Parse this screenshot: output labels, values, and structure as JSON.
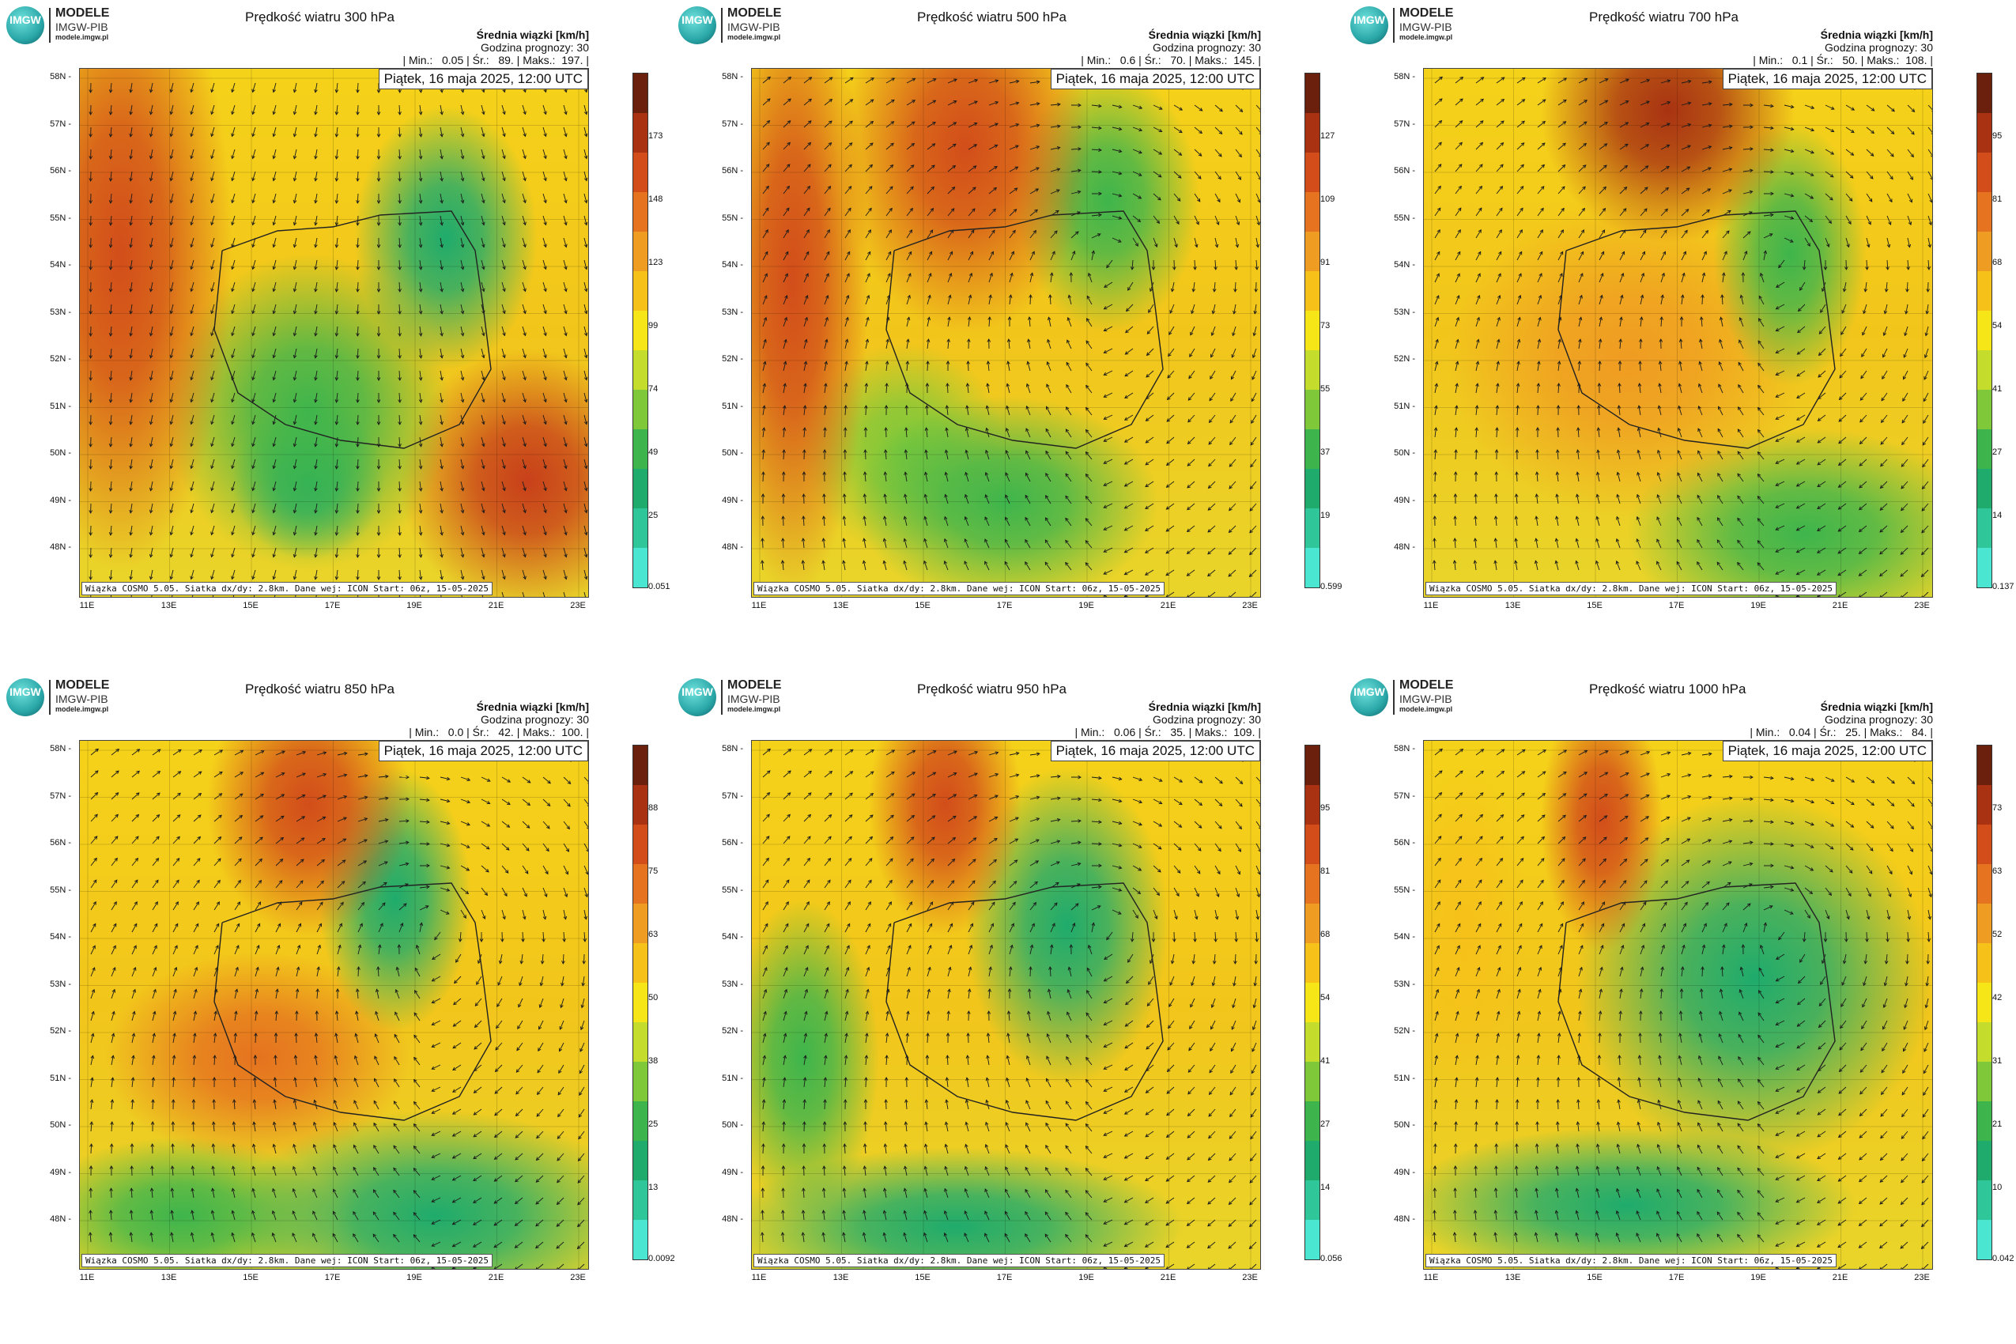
{
  "brand": {
    "line1": "MODELE",
    "line2": "IMGW-PIB",
    "line3": "modele.imgw.pl",
    "mark": "IMGW"
  },
  "common": {
    "units": "Średnia wiązki [km/h]",
    "forecast": "Godzina prognozy: 30",
    "date": "Piątek, 16 maja 2025, 12:00 UTC",
    "footer": "Wiązka COSMO 5.05. Siatka dx/dy: 2.8km. Dane wej: ICON Start: 06z, 15-05-2025",
    "lat_labels": [
      "58N",
      "57N",
      "56N",
      "55N",
      "54N",
      "53N",
      "52N",
      "51N",
      "50N",
      "49N",
      "48N"
    ],
    "lon_labels": [
      "11E",
      "13E",
      "15E",
      "17E",
      "19E",
      "21E",
      "23E"
    ]
  },
  "colors": {
    "scale": [
      "#4be6d2",
      "#2fc79a",
      "#1fab6c",
      "#3eb54c",
      "#7fc83a",
      "#c4dd2c",
      "#f7e617",
      "#f6c21a",
      "#ef9c22",
      "#e5731f",
      "#d24d1a",
      "#a83212",
      "#6b1f0d"
    ]
  },
  "panels": [
    {
      "title": "Prędkość wiatru 300 hPa",
      "stats": "| Min.:   0.05 | Śr.:   89. | Maks.:  197. |",
      "cbar_labels": [
        "173",
        "148",
        "123",
        "99",
        "74",
        "49",
        "25"
      ],
      "cbar_min": "0.051"
    },
    {
      "title": "Prędkość wiatru 500 hPa",
      "stats": "| Min.:   0.6 | Śr.:   70. | Maks.:  145. |",
      "cbar_labels": [
        "127",
        "109",
        "91",
        "73",
        "55",
        "37",
        "19"
      ],
      "cbar_min": "0.599"
    },
    {
      "title": "Prędkość wiatru 700 hPa",
      "stats": "| Min.:   0.1 | Śr.:   50. | Maks.:  108. |",
      "cbar_labels": [
        "95",
        "81",
        "68",
        "54",
        "41",
        "27",
        "14"
      ],
      "cbar_min": "0.137"
    },
    {
      "title": "Prędkość wiatru 850 hPa",
      "stats": "| Min.:   0.0 | Śr.:   42. | Maks.:  100. |",
      "cbar_labels": [
        "88",
        "75",
        "63",
        "50",
        "38",
        "25",
        "13"
      ],
      "cbar_min": "0.0092"
    },
    {
      "title": "Prędkość wiatru 950 hPa",
      "stats": "| Min.:   0.06 | Śr.:   35. | Maks.:  109. |",
      "cbar_labels": [
        "95",
        "81",
        "68",
        "54",
        "41",
        "27",
        "14"
      ],
      "cbar_min": "0.056"
    },
    {
      "title": "Prędkość wiatru 1000 hPa",
      "stats": "| Min.:   0.04 | Śr.:   25. | Maks.:   84. |",
      "cbar_labels": [
        "73",
        "63",
        "52",
        "42",
        "31",
        "21",
        "10"
      ],
      "cbar_min": "0.042"
    }
  ]
}
